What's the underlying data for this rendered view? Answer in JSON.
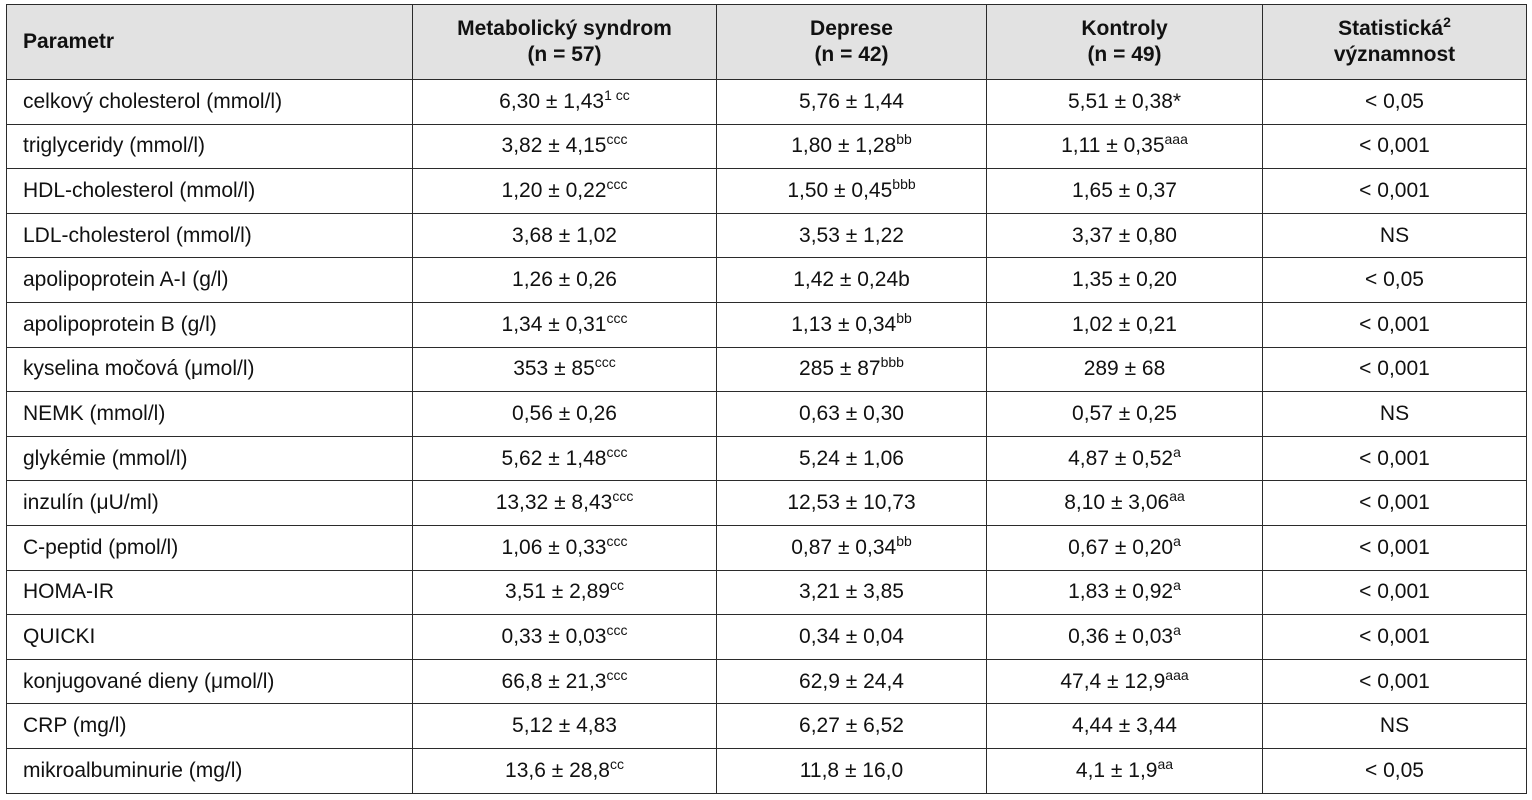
{
  "headers": {
    "parametr": "Parametr",
    "ms_line1": "Metabolický syndrom",
    "ms_line2": "(n = 57)",
    "dep_line1": "Deprese",
    "dep_line2": "(n = 42)",
    "ctrl_line1": "Kontroly",
    "ctrl_line2": "(n = 49)",
    "stat_line1": "Statistická",
    "stat_sup": "2",
    "stat_line2": "významnost"
  },
  "rows": [
    {
      "param": "celkový cholesterol (mmol/l)",
      "ms": "6,30 ± 1,43",
      "ms_sup": "1 cc",
      "dep": "5,76 ± 1,44",
      "dep_sup": "",
      "ctrl": "5,51 ± 0,38*",
      "ctrl_sup": "",
      "stat": "< 0,05"
    },
    {
      "param": "triglyceridy (mmol/l)",
      "ms": "3,82 ± 4,15",
      "ms_sup": "ccc",
      "dep": "1,80 ± 1,28",
      "dep_sup": "bb",
      "ctrl": "1,11 ± 0,35",
      "ctrl_sup": "aaa",
      "stat": "< 0,001"
    },
    {
      "param": "HDL-cholesterol (mmol/l)",
      "ms": "1,20 ± 0,22",
      "ms_sup": "ccc",
      "dep": "1,50 ± 0,45",
      "dep_sup": "bbb",
      "ctrl": "1,65 ± 0,37",
      "ctrl_sup": "",
      "stat": "< 0,001"
    },
    {
      "param": "LDL-cholesterol (mmol/l)",
      "ms": "3,68 ± 1,02",
      "ms_sup": "",
      "dep": "3,53 ± 1,22",
      "dep_sup": "",
      "ctrl": "3,37 ± 0,80",
      "ctrl_sup": "",
      "stat": "NS"
    },
    {
      "param": "apolipoprotein A-I (g/l)",
      "ms": "1,26 ± 0,26",
      "ms_sup": "",
      "dep": "1,42 ± 0,24b",
      "dep_sup": "",
      "ctrl": "1,35 ± 0,20",
      "ctrl_sup": "",
      "stat": "< 0,05"
    },
    {
      "param": "apolipoprotein B (g/l)",
      "ms": "1,34 ± 0,31",
      "ms_sup": "ccc",
      "dep": "1,13 ± 0,34",
      "dep_sup": "bb",
      "ctrl": "1,02 ± 0,21",
      "ctrl_sup": "",
      "stat": "< 0,001"
    },
    {
      "param": "kyselina močová (μmol/l)",
      "ms": "353 ± 85",
      "ms_sup": "ccc",
      "dep": "285 ± 87",
      "dep_sup": "bbb",
      "ctrl": "289 ± 68",
      "ctrl_sup": "",
      "stat": "< 0,001"
    },
    {
      "param": "NEMK (mmol/l)",
      "ms": "0,56 ± 0,26",
      "ms_sup": "",
      "dep": "0,63 ± 0,30",
      "dep_sup": "",
      "ctrl": "0,57 ± 0,25",
      "ctrl_sup": "",
      "stat": "NS"
    },
    {
      "param": "glykémie (mmol/l)",
      "ms": "5,62 ± 1,48",
      "ms_sup": "ccc",
      "dep": "5,24 ± 1,06",
      "dep_sup": "",
      "ctrl": "4,87 ± 0,52",
      "ctrl_sup": "a",
      "stat": "< 0,001"
    },
    {
      "param": "inzulín (μU/ml)",
      "ms": "13,32 ± 8,43",
      "ms_sup": "ccc",
      "dep": "12,53 ± 10,73",
      "dep_sup": "",
      "ctrl": "8,10 ± 3,06",
      "ctrl_sup": "aa",
      "stat": "< 0,001"
    },
    {
      "param": "C-peptid (pmol/l)",
      "ms": "1,06 ± 0,33",
      "ms_sup": "ccc",
      "dep": "0,87 ± 0,34",
      "dep_sup": "bb",
      "ctrl": "0,67 ± 0,20",
      "ctrl_sup": "a",
      "stat": "< 0,001"
    },
    {
      "param": "HOMA-IR",
      "ms": "3,51 ± 2,89",
      "ms_sup": "cc",
      "dep": "3,21 ± 3,85",
      "dep_sup": "",
      "ctrl": "1,83 ± 0,92",
      "ctrl_sup": "a",
      "stat": "< 0,001"
    },
    {
      "param": "QUICKI",
      "ms": "0,33 ± 0,03",
      "ms_sup": "ccc",
      "dep": "0,34 ± 0,04",
      "dep_sup": "",
      "ctrl": "0,36 ± 0,03",
      "ctrl_sup": "a",
      "stat": "< 0,001"
    },
    {
      "param": "konjugované dieny (μmol/l)",
      "ms": "66,8 ± 21,3",
      "ms_sup": "ccc",
      "dep": "62,9 ± 24,4",
      "dep_sup": "",
      "ctrl": "47,4 ± 12,9",
      "ctrl_sup": "aaa",
      "stat": "< 0,001"
    },
    {
      "param": "CRP (mg/l)",
      "ms": "5,12 ± 4,83",
      "ms_sup": "",
      "dep": "6,27 ± 6,52",
      "dep_sup": "",
      "ctrl": "4,44 ± 3,44",
      "ctrl_sup": "",
      "stat": "NS"
    },
    {
      "param": "mikroalbuminurie (mg/l)",
      "ms": "13,6 ± 28,8",
      "ms_sup": "cc",
      "dep": "11,8 ± 16,0",
      "dep_sup": "",
      "ctrl": "4,1 ± 1,9",
      "ctrl_sup": "aa",
      "stat": "< 0,05"
    }
  ]
}
